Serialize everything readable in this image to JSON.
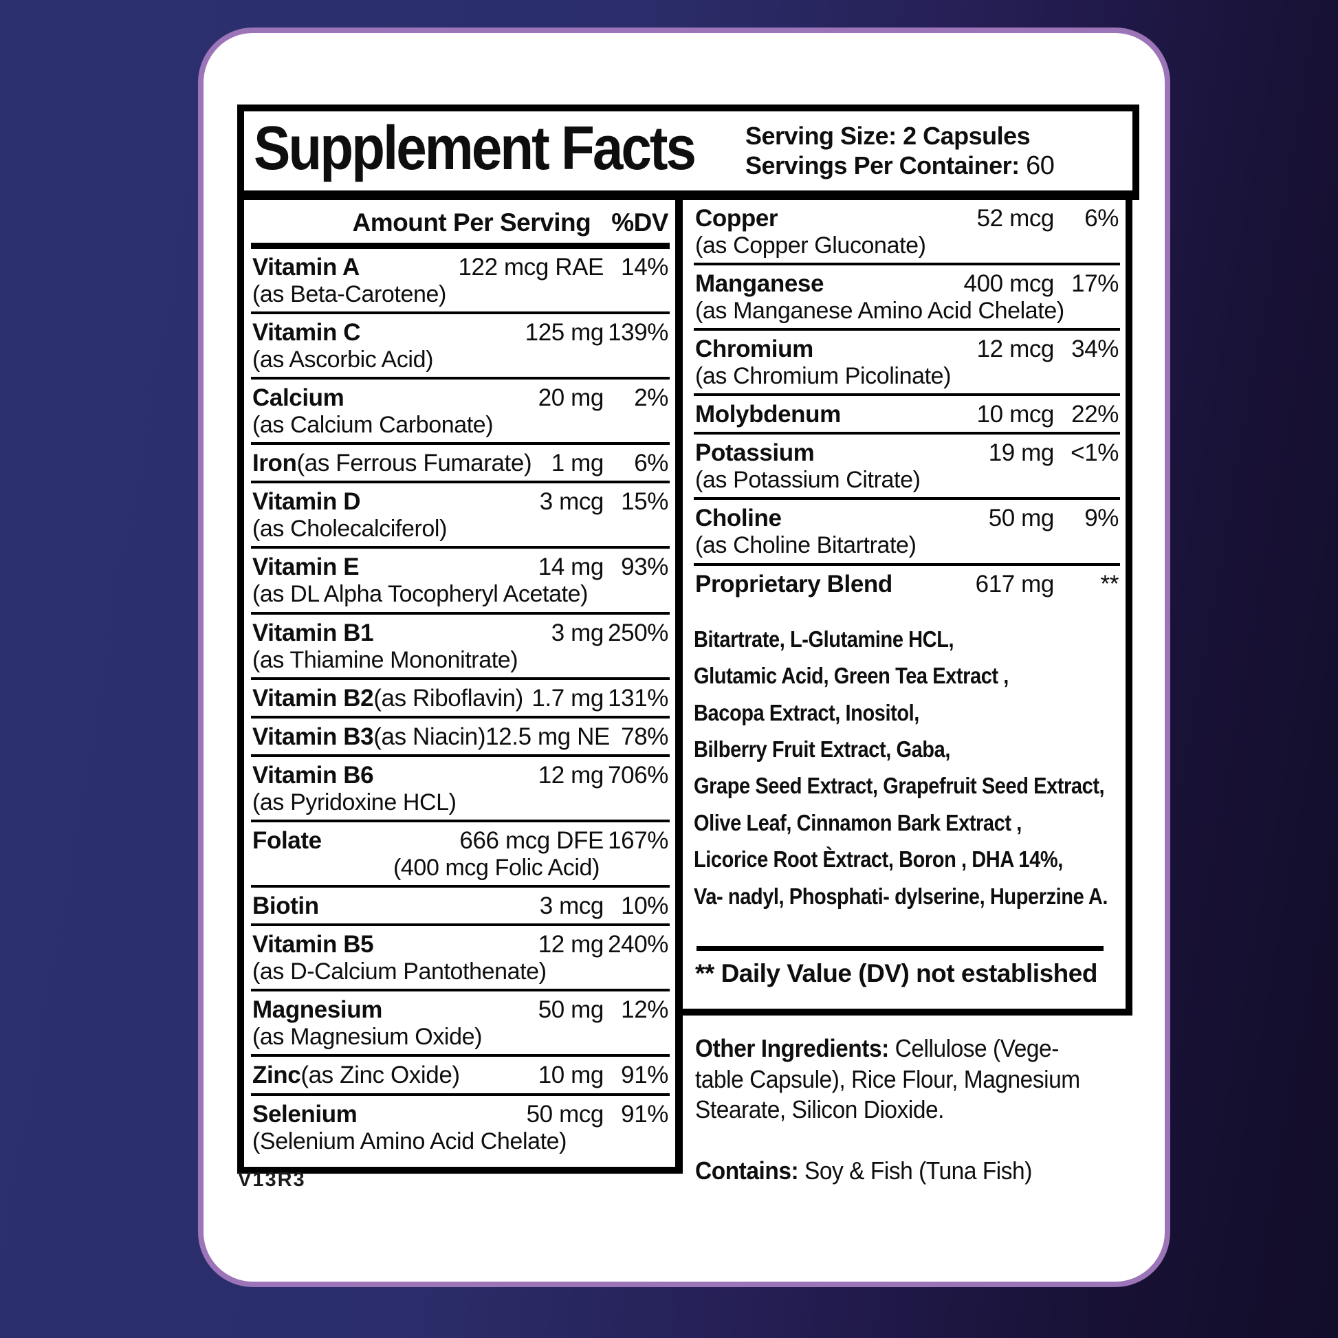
{
  "colors": {
    "bg_left": "#2c306f",
    "bg_right": "#120d28",
    "card_bg": "#ffffff",
    "card_border": "#9c74b8",
    "text": "#0e0e0e",
    "rule": "#000000"
  },
  "header": {
    "title": "Supplement Facts",
    "serving_size_label": "Serving Size:",
    "serving_size_value": "2 Capsules",
    "servings_label": "Servings Per Container:",
    "servings_value": "60"
  },
  "column_header": {
    "amount": "Amount Per Serving",
    "dv": "%DV"
  },
  "rows_left": [
    {
      "name": "Vitamin A",
      "suffix": "",
      "sub": "(as Beta-Carotene)",
      "amount": "122 mcg RAE",
      "dv": "14%"
    },
    {
      "name": "Vitamin C",
      "suffix": "",
      "sub": "(as Ascorbic Acid)",
      "amount": "125 mg",
      "dv": "139%"
    },
    {
      "name": "Calcium",
      "suffix": "",
      "sub": "(as Calcium Carbonate)",
      "amount": "20 mg",
      "dv": "2%"
    },
    {
      "name": "Iron",
      "suffix": " (as Ferrous Fumarate)",
      "sub": "",
      "amount": "1 mg",
      "dv": "6%"
    },
    {
      "name": "Vitamin D",
      "suffix": "",
      "sub": "(as Cholecalciferol)",
      "amount": "3 mcg",
      "dv": "15%"
    },
    {
      "name": "Vitamin E",
      "suffix": "",
      "sub": "(as DL Alpha Tocopheryl Acetate)",
      "amount": "14 mg",
      "dv": "93%"
    },
    {
      "name": "Vitamin B1",
      "suffix": "",
      "sub": "(as Thiamine Mononitrate)",
      "amount": "3 mg",
      "dv": "250%"
    },
    {
      "name": "Vitamin B2",
      "suffix": " (as Riboflavin)",
      "sub": "",
      "amount": "1.7 mg",
      "dv": "131%"
    },
    {
      "name": "Vitamin B3",
      "suffix": " (as Niacin)",
      "sub": "",
      "amount": "12.5 mg NE",
      "dv": "78%"
    },
    {
      "name": "Vitamin B6",
      "suffix": "",
      "sub": "(as Pyridoxine HCL)",
      "amount": "12 mg",
      "dv": "706%"
    },
    {
      "name": "Folate",
      "suffix": "",
      "sub": "(400 mcg Folic Acid)",
      "sub_right": true,
      "amount": "666 mcg DFE",
      "dv": "167%"
    },
    {
      "name": "Biotin",
      "suffix": "",
      "sub": "",
      "amount": "3 mcg",
      "dv": "10%"
    },
    {
      "name": "Vitamin B5",
      "suffix": "",
      "sub": "(as D-Calcium Pantothenate)",
      "amount": "12 mg",
      "dv": "240%"
    },
    {
      "name": "Magnesium",
      "suffix": "",
      "sub": "(as Magnesium Oxide)",
      "amount": "50 mg",
      "dv": "12%"
    },
    {
      "name": "Zinc",
      "suffix": " (as Zinc Oxide)",
      "sub": "",
      "amount": "10 mg",
      "dv": "91%"
    },
    {
      "name": "Selenium",
      "suffix": "",
      "sub": "(Selenium Amino Acid Chelate)",
      "amount": "50 mcg",
      "dv": "91%"
    }
  ],
  "rows_right": [
    {
      "name": "Copper",
      "suffix": "",
      "sub": "(as Copper Gluconate)",
      "amount": "52 mcg",
      "dv": "6%"
    },
    {
      "name": "Manganese",
      "suffix": "",
      "sub": "(as Manganese Amino Acid Chelate)",
      "amount": "400 mcg",
      "dv": "17%"
    },
    {
      "name": "Chromium",
      "suffix": "",
      "sub": "(as Chromium Picolinate)",
      "amount": "12 mcg",
      "dv": "34%"
    },
    {
      "name": "Molybdenum",
      "suffix": "",
      "sub": "",
      "amount": "10 mcg",
      "dv": "22%"
    },
    {
      "name": "Potassium",
      "suffix": "",
      "sub": "(as Potassium Citrate)",
      "amount": "19 mg",
      "dv": "<1%"
    },
    {
      "name": "Choline",
      "suffix": "",
      "sub": "(as Choline Bitartrate)",
      "amount": "50 mg",
      "dv": "9%"
    },
    {
      "name": "Proprietary Blend",
      "suffix": "",
      "sub": "",
      "amount": "617 mg",
      "dv": "**"
    }
  ],
  "blend_lines": [
    "Bitartrate, L-Glutamine HCL,",
    "Glutamic Acid, Green Tea Extract ,",
    "Bacopa Extract, Inositol,",
    "Bilberry Fruit Extract, Gaba,",
    "Grape Seed Extract, Grapefruit Seed Extract,",
    "Olive Leaf, Cinnamon Bark Extract ,",
    "Licorice Root Èxtract, Boron , DHA 14%,",
    "Va- nadyl, Phosphati- dylserine, Huperzine A."
  ],
  "dv_note": "** Daily Value (DV) not established",
  "other_ingredients": {
    "label": "Other Ingredients:",
    "lines": [
      " Cellulose (Vege-",
      "table Capsule), Rice Flour, Magnesium",
      "Stearate, Silicon Dioxide."
    ]
  },
  "contains": {
    "label": "Contains:",
    "value": " Soy & Fish (Tuna Fish)"
  },
  "version_code": "V13R3"
}
